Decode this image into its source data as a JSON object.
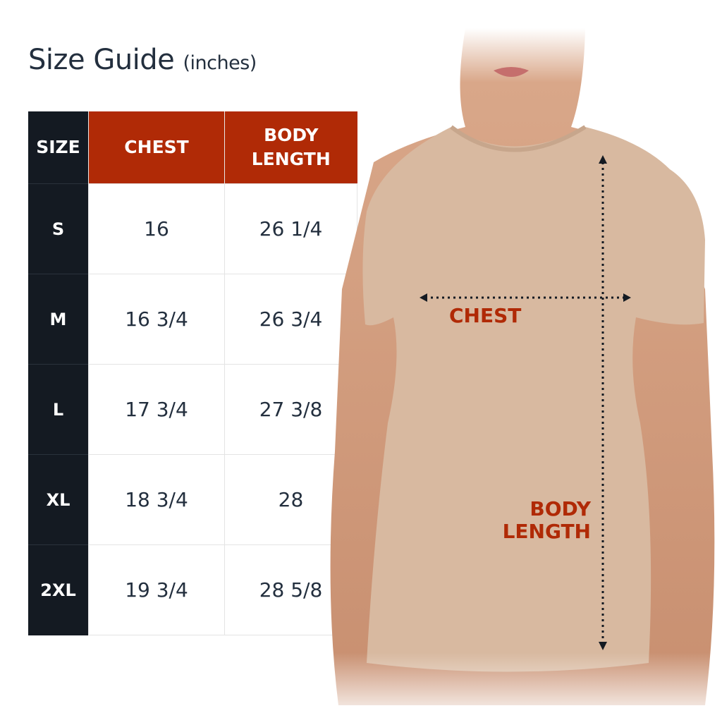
{
  "title": {
    "main": "Size Guide",
    "unit": "(inches)"
  },
  "table": {
    "headers": [
      "SIZE",
      "CHEST",
      "BODY LENGTH"
    ],
    "rows": [
      {
        "size": "S",
        "chest": "16",
        "body_length": "26 1/4"
      },
      {
        "size": "M",
        "chest": "16 3/4",
        "body_length": "26 3/4"
      },
      {
        "size": "L",
        "chest": "17 3/4",
        "body_length": "27 3/8"
      },
      {
        "size": "XL",
        "chest": "18 3/4",
        "body_length": "28"
      },
      {
        "size": "2XL",
        "chest": "19 3/4",
        "body_length": "28 5/8"
      }
    ]
  },
  "diagram": {
    "chest_label": "CHEST",
    "body_length_label_1": "BODY",
    "body_length_label_2": "LENGTH"
  },
  "colors": {
    "accent": "#b02a06",
    "dark": "#141a22",
    "text": "#232f3e",
    "shirt": "#d8b9a0"
  }
}
